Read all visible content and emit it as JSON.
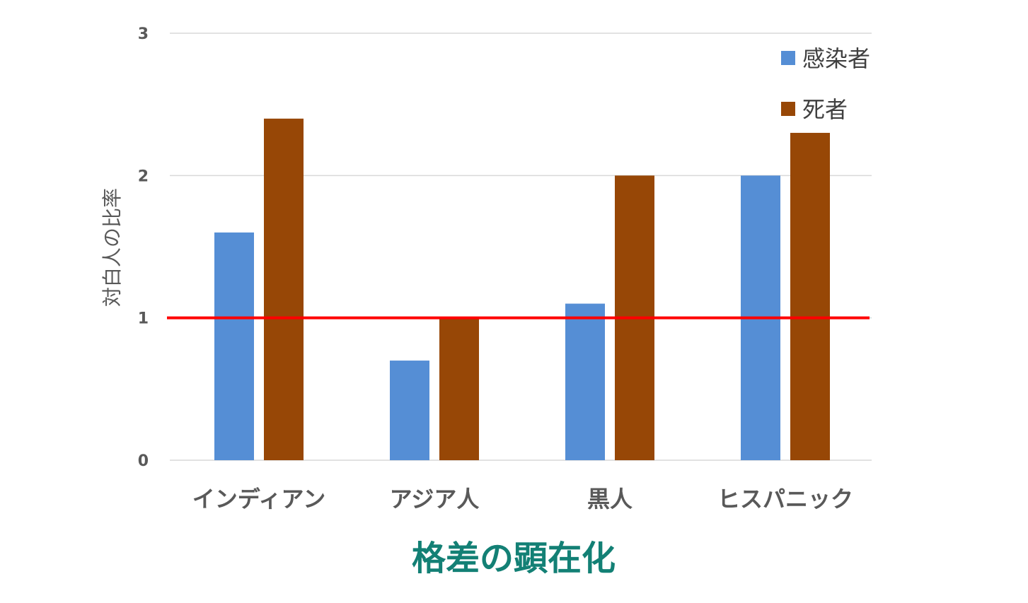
{
  "chart_data": {
    "type": "bar",
    "title": "格差の顕在化",
    "xlabel": "",
    "ylabel": "対白人の比率",
    "ylim": [
      0,
      3
    ],
    "yticks": [
      "0",
      "1",
      "2",
      "3"
    ],
    "grid": true,
    "legend_position": "top-right",
    "categories": [
      "インディアン",
      "アジア人",
      "黒人",
      "ヒスパニック"
    ],
    "series": [
      {
        "name": "感染者",
        "values": [
          1.6,
          0.7,
          1.1,
          2.0
        ],
        "color": "#558ED5"
      },
      {
        "name": "死者",
        "values": [
          2.4,
          1.0,
          2.0,
          2.3
        ],
        "color": "#974706"
      }
    ],
    "reference_line": {
      "value": 1,
      "color": "#FF0000"
    },
    "title_color": "#138075"
  }
}
